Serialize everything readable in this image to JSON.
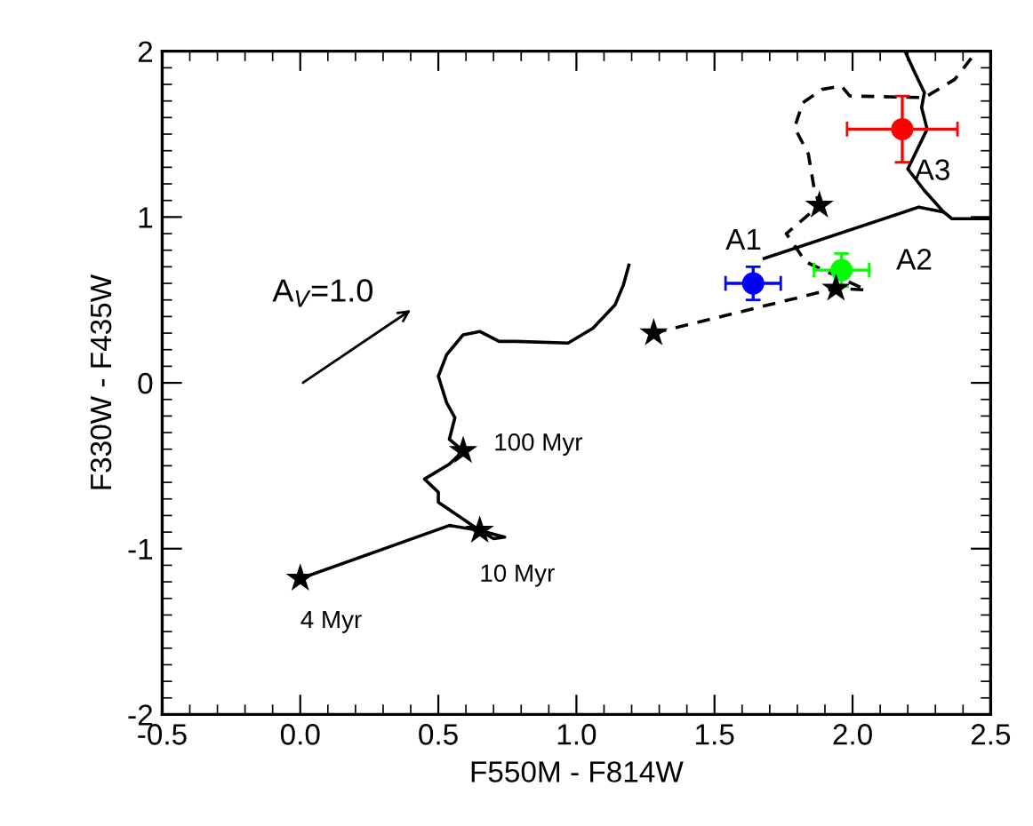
{
  "chart_data": {
    "type": "line",
    "xlabel": "F550M - F814W",
    "ylabel": "F330W - F435W",
    "xlim": [
      -0.5,
      2.5
    ],
    "ylim": [
      -2,
      2
    ],
    "xticks": [
      -0.5,
      {
        "value": 0,
        "label": "0.0"
      },
      0.5,
      {
        "value": 1,
        "label": "1.0"
      },
      1.5,
      {
        "value": 2,
        "label": "2.0"
      },
      2.5
    ],
    "yticks": [
      -2,
      -1,
      0,
      1,
      2
    ],
    "grid": false,
    "legend": false,
    "series": [
      {
        "type": "line",
        "line_style": "solid",
        "color": "#000000",
        "x": [
          0,
          0.54,
          0.65,
          0.74,
          0.7,
          0.65,
          0.5,
          0.5,
          0.45,
          0.54,
          0.59,
          0.54,
          0.56,
          0.53,
          0.5,
          0.53,
          0.59,
          0.65,
          0.72,
          0.78,
          0.97,
          1.06,
          1.14,
          1.17,
          1.19
        ],
        "values": [
          -1.18,
          -0.86,
          -0.89,
          -0.93,
          -0.94,
          -0.89,
          -0.72,
          -0.66,
          -0.58,
          -0.49,
          -0.41,
          -0.34,
          -0.21,
          -0.12,
          0.04,
          0.17,
          0.29,
          0.31,
          0.25,
          0.25,
          0.24,
          0.33,
          0.47,
          0.59,
          0.71
        ]
      },
      {
        "type": "line",
        "line_style": "solid",
        "color": "#000000",
        "x": [
          1.68,
          2.24,
          2.33,
          2.36,
          2.42,
          2.5
        ],
        "values": [
          0.75,
          1.06,
          1.03,
          0.99,
          0.99,
          0.99
        ]
      },
      {
        "type": "line",
        "line_style": "solid",
        "color": "#000000",
        "x": [
          2.19,
          2.22,
          2.26,
          2.25,
          2.27,
          2.2,
          2.26,
          2.33
        ],
        "values": [
          2.0,
          1.89,
          1.75,
          1.66,
          1.53,
          1.29,
          1.16,
          1.03
        ]
      },
      {
        "type": "line",
        "line_style": "dashed",
        "color": "#000000",
        "x": [
          1.28,
          1.94,
          2.05,
          1.83,
          1.76,
          1.88,
          1.86,
          1.84,
          1.79,
          1.82,
          1.89,
          1.96,
          1.99,
          2.26,
          2.37,
          2.45
        ],
        "values": [
          0.3,
          0.57,
          0.56,
          0.73,
          0.9,
          1.07,
          1.18,
          1.38,
          1.54,
          1.69,
          1.77,
          1.79,
          1.73,
          1.72,
          1.83,
          2.0
        ]
      },
      {
        "type": "scatter",
        "marker": "star",
        "color": "#000000",
        "x": [
          0,
          0.65,
          0.59,
          1.28,
          1.94,
          1.88
        ],
        "values": [
          -1.18,
          -0.89,
          -0.41,
          0.3,
          0.57,
          1.07
        ]
      },
      {
        "type": "scatter",
        "marker": "circle",
        "color": "#0000ff",
        "x": [
          1.64
        ],
        "values": [
          0.6
        ],
        "errors": [
          0.1
        ],
        "xerrors": [
          0.1
        ]
      },
      {
        "type": "scatter",
        "marker": "circle",
        "color": "#00ff00",
        "x": [
          1.96
        ],
        "values": [
          0.68
        ],
        "errors": [
          0.1
        ],
        "xerrors": [
          0.1
        ]
      },
      {
        "type": "scatter",
        "marker": "circle",
        "color": "#ff0000",
        "x": [
          2.18
        ],
        "values": [
          1.53
        ],
        "errors": [
          0.2
        ],
        "xerrors": [
          0.2
        ]
      }
    ],
    "annotations": [
      "A1",
      "A2",
      "A3",
      "100 Myr",
      "10 Myr",
      "4 Myr",
      "A$_{V}$=1.0"
    ]
  }
}
